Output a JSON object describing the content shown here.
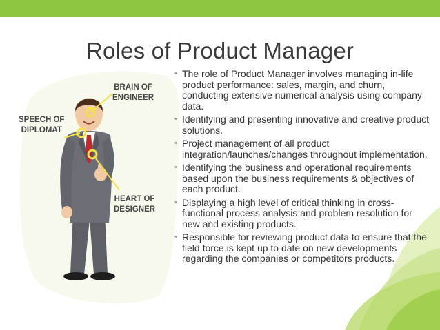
{
  "slide": {
    "title": "Roles of Product Manager",
    "callouts": {
      "brain": [
        "BRAIN OF",
        "ENGINEER"
      ],
      "speech": [
        "SPEECH OF",
        "DIPLOMAT"
      ],
      "heart": [
        "HEART OF",
        "DESIGNER"
      ]
    },
    "bullets": [
      "The role of Product Manager involves managing in-life product performance: sales, margin, and churn, conducting extensive numerical analysis using company data.",
      "Identifying and presenting innovative and creative product solutions.",
      "Project management of all product integration/launches/changes throughout implementation.",
      "Identifying the business and operational requirements based upon the business requirements & objectives of each product.",
      "Displaying a high level of critical thinking in cross-functional process analysis and problem resolution for new and existing products.",
      "Responsible for reviewing product data to ensure that the field force is kept up to date on new developments regarding the companies or competitors products."
    ],
    "bullet_glyph": "•"
  },
  "colors": {
    "accent_green": "#8dc63f",
    "leaf_light": "#e8f3c8",
    "highlight_yellow": "#f2e24a"
  },
  "icons": [
    "businessman-illustration",
    "green-leaf-decoration"
  ]
}
